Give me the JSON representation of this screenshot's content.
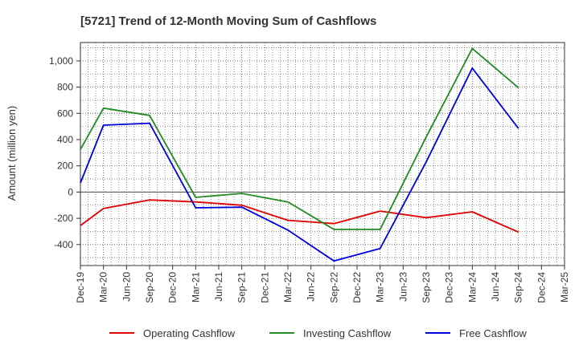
{
  "chart_data": {
    "type": "line",
    "title": "[5721]  Trend of 12-Month Moving Sum of Cashflows",
    "xlabel": "",
    "ylabel": "Amount (million yen)",
    "ylim": [
      -560,
      1140
    ],
    "yticks": [
      -400,
      -200,
      0,
      200,
      400,
      600,
      800,
      1000
    ],
    "ytick_labels": [
      "-400",
      "-200",
      "0",
      "200",
      "400",
      "600",
      "800",
      "1,000"
    ],
    "categories": [
      "Dec-19",
      "Mar-20",
      "Jun-20",
      "Sep-20",
      "Dec-20",
      "Mar-21",
      "Jun-21",
      "Sep-21",
      "Dec-21",
      "Mar-22",
      "Jun-22",
      "Sep-22",
      "Dec-22",
      "Mar-23",
      "Jun-23",
      "Sep-23",
      "Dec-23",
      "Mar-24",
      "Jun-24",
      "Sep-24",
      "Dec-24",
      "Mar-25"
    ],
    "grid": true,
    "legend_position": "bottom",
    "series": [
      {
        "name": "Operating Cashflow",
        "color": "#e00000",
        "values": [
          -255,
          -125,
          null,
          -60,
          null,
          -75,
          null,
          -100,
          null,
          -215,
          null,
          -240,
          null,
          -145,
          null,
          -195,
          null,
          -150,
          null,
          -305,
          null,
          null
        ]
      },
      {
        "name": "Investing Cashflow",
        "color": "#228b22",
        "values": [
          325,
          640,
          null,
          585,
          null,
          -40,
          null,
          -10,
          null,
          -75,
          null,
          -285,
          null,
          -285,
          null,
          420,
          null,
          1095,
          null,
          795,
          null,
          null
        ]
      },
      {
        "name": "Free Cashflow",
        "color": "#0000dd",
        "values": [
          70,
          510,
          null,
          525,
          null,
          -120,
          null,
          -115,
          null,
          -290,
          null,
          -525,
          null,
          -430,
          null,
          230,
          null,
          945,
          null,
          485,
          null,
          null
        ]
      }
    ]
  }
}
